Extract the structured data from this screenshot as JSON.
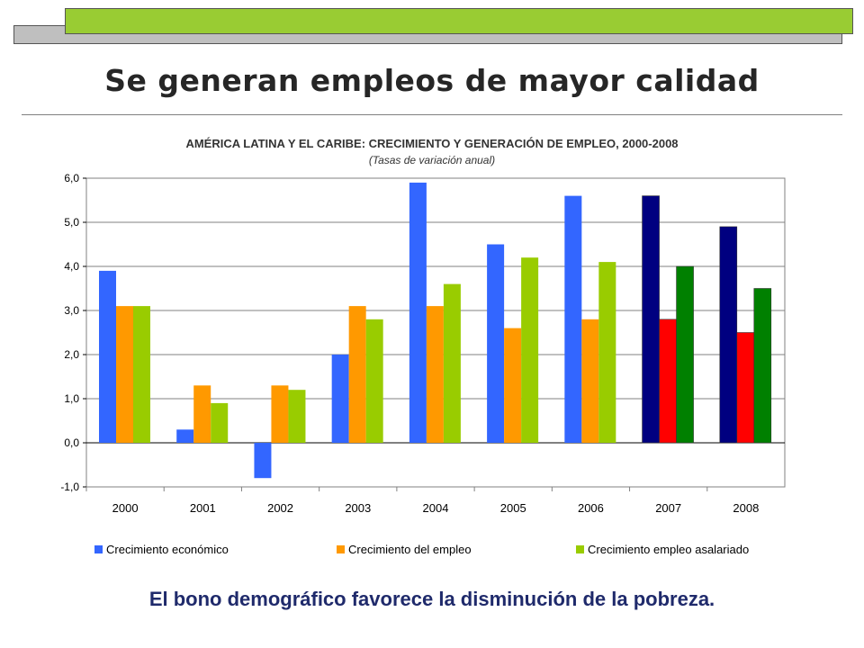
{
  "slide": {
    "title": "Se generan empleos de mayor calidad",
    "footer": "El bono demográfico favorece la disminución de la pobreza.",
    "colors": {
      "accent_green": "#99cc33",
      "frame_gray": "#bfbfbf",
      "footer_text": "#1f2a6b"
    }
  },
  "chart_data": {
    "type": "bar",
    "title": "AMÉRICA LATINA Y EL CARIBE: CRECIMIENTO Y GENERACIÓN DE EMPLEO, 2000-2008",
    "subtitle": "(Tasas de variación anual)",
    "categories": [
      "2000",
      "2001",
      "2002",
      "2003",
      "2004",
      "2005",
      "2006",
      "2007",
      "2008"
    ],
    "yticks": [
      "-1,0",
      "0,0",
      "1,0",
      "2,0",
      "3,0",
      "4,0",
      "5,0",
      "6,0"
    ],
    "ylim": [
      -1,
      6
    ],
    "grid": true,
    "legend_position": "bottom",
    "series": [
      {
        "name": "Crecimiento económico",
        "values": [
          3.9,
          0.3,
          -0.8,
          2.0,
          5.9,
          4.5,
          5.6,
          5.6,
          4.9
        ],
        "color": "#3366ff"
      },
      {
        "name": "Crecimiento del empleo",
        "values": [
          3.1,
          1.3,
          1.3,
          3.1,
          3.1,
          2.6,
          2.8,
          2.8,
          2.5
        ],
        "color": "#ff9900"
      },
      {
        "name": "Crecimiento empleo asalariado",
        "values": [
          3.1,
          0.9,
          1.2,
          2.8,
          3.6,
          4.2,
          4.1,
          4.0,
          3.5
        ],
        "color": "#99cc00"
      }
    ],
    "highlight_categories": [
      "2007",
      "2008"
    ],
    "highlight_colors": [
      "#000080",
      "#ff0000",
      "#008000"
    ]
  }
}
